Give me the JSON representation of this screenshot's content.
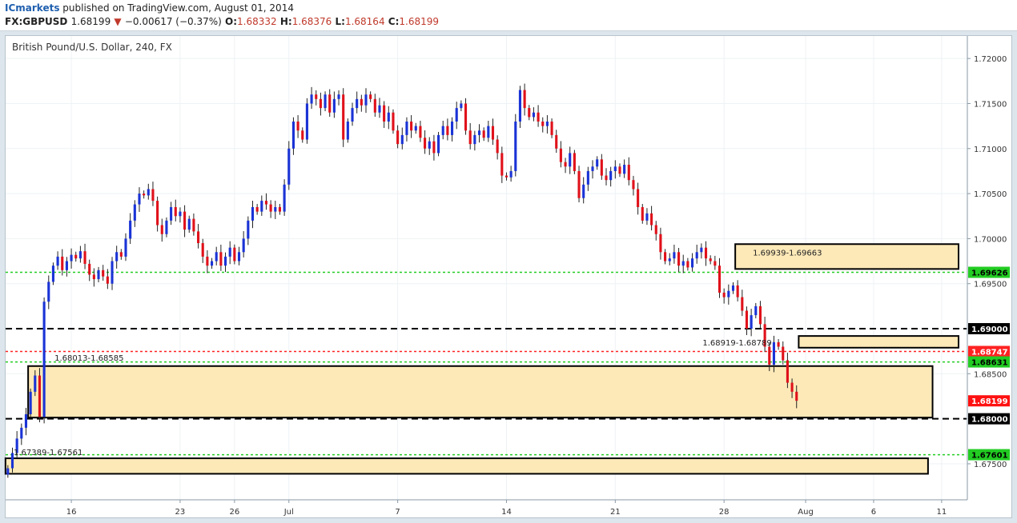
{
  "header": {
    "publisher": "ICmarkets",
    "published_text": "published on TradingView.com, August 01, 2014",
    "symbol": "FX:GBPUSD",
    "last": "1.68199",
    "change_arrow": "▼",
    "change": "−0.00617 (−0.37%)",
    "open_label": "O:",
    "open": "1.68332",
    "high_label": "H:",
    "high": "1.68376",
    "low_label": "L:",
    "low": "1.68164",
    "close_label": "C:",
    "close": "1.68199"
  },
  "chart_title": "British Pound/U.S. Dollar, 240, FX",
  "colors": {
    "up_candle": "#1a33d6",
    "down_candle": "#e0111a",
    "zone_fill": "#fde9b8",
    "green_line": "#22cc22",
    "red_line": "#ff2222",
    "black_line": "#000000"
  },
  "chart_data": {
    "type": "candlestick",
    "x_ticks": [
      {
        "label": "16",
        "i": 14
      },
      {
        "label": "23",
        "i": 38
      },
      {
        "label": "26",
        "i": 50
      },
      {
        "label": "Jul",
        "i": 62
      },
      {
        "label": "7",
        "i": 86
      },
      {
        "label": "14",
        "i": 110
      },
      {
        "label": "21",
        "i": 134
      },
      {
        "label": "28",
        "i": 158
      },
      {
        "label": "Aug",
        "i": 176
      },
      {
        "label": "6",
        "i": 191
      },
      {
        "label": "11",
        "i": 206
      }
    ],
    "y_ticks": [
      "1.72000",
      "1.71500",
      "1.71000",
      "1.70500",
      "1.70000",
      "1.69500",
      "1.69000",
      "1.68500",
      "1.68000",
      "1.67500"
    ],
    "ylim": [
      1.671,
      1.7225
    ],
    "x_count": 212,
    "zones": [
      {
        "label": "1.69939-1.69663",
        "top": 1.69939,
        "bottom": 1.69663,
        "i0": 161,
        "i1": 210
      },
      {
        "label": "1.68919-1.68789",
        "top": 1.68919,
        "bottom": 1.68789,
        "i0": 175,
        "i1": 210
      },
      {
        "label": "1.68013-1.68585",
        "top": 1.68585,
        "bottom": 1.68013,
        "i0": 5,
        "i1": 204
      },
      {
        "label": "1.67389-1.67561",
        "top": 1.67561,
        "bottom": 1.67389,
        "i0": 0,
        "i1": 203
      }
    ],
    "levels": [
      {
        "price": 1.69626,
        "label": "1.69626",
        "style": "green"
      },
      {
        "price": 1.69,
        "label": "1.69000",
        "style": "black"
      },
      {
        "price": 1.68747,
        "label": "1.68747",
        "style": "red"
      },
      {
        "price": 1.68631,
        "label": "1.68631",
        "style": "green"
      },
      {
        "price": 1.68199,
        "label": "1.68199",
        "style": "current"
      },
      {
        "price": 1.68,
        "label": "1.68000",
        "style": "black"
      },
      {
        "price": 1.67601,
        "label": "1.67601",
        "style": "green"
      }
    ],
    "closes": [
      1.6745,
      1.6762,
      1.6778,
      1.679,
      1.6805,
      1.683,
      1.6848,
      1.6802,
      1.693,
      1.6952,
      1.697,
      1.698,
      1.6965,
      1.6975,
      1.6982,
      1.6978,
      1.6986,
      1.6972,
      1.696,
      1.6955,
      1.6965,
      1.6958,
      1.695,
      1.6975,
      1.6985,
      1.698,
      1.7,
      1.702,
      1.7038,
      1.705,
      1.7048,
      1.7055,
      1.7042,
      1.7015,
      1.7005,
      1.702,
      1.7035,
      1.7025,
      1.703,
      1.701,
      1.7022,
      1.7008,
      1.6995,
      1.698,
      1.697,
      1.6975,
      1.6985,
      1.697,
      1.698,
      1.699,
      1.6975,
      1.6985,
      1.7,
      1.702,
      1.7035,
      1.703,
      1.7042,
      1.7038,
      1.703,
      1.7035,
      1.703,
      1.706,
      1.71,
      1.713,
      1.712,
      1.711,
      1.715,
      1.716,
      1.7155,
      1.7145,
      1.716,
      1.714,
      1.7155,
      1.716,
      1.711,
      1.713,
      1.7145,
      1.7155,
      1.7148,
      1.716,
      1.7155,
      1.714,
      1.7148,
      1.713,
      1.714,
      1.712,
      1.7105,
      1.7115,
      1.713,
      1.712,
      1.7125,
      1.7112,
      1.71,
      1.7108,
      1.7095,
      1.7115,
      1.7125,
      1.7115,
      1.713,
      1.7145,
      1.715,
      1.712,
      1.7105,
      1.7115,
      1.712,
      1.7112,
      1.7125,
      1.711,
      1.7095,
      1.707,
      1.7068,
      1.7075,
      1.713,
      1.7165,
      1.7145,
      1.7135,
      1.714,
      1.713,
      1.7125,
      1.713,
      1.7115,
      1.71,
      1.7085,
      1.708,
      1.7095,
      1.7075,
      1.7045,
      1.706,
      1.7075,
      1.708,
      1.7088,
      1.707,
      1.7065,
      1.7075,
      1.708,
      1.7072,
      1.7082,
      1.7065,
      1.7055,
      1.7035,
      1.702,
      1.7028,
      1.7015,
      1.7005,
      1.6985,
      1.6975,
      1.6978,
      1.6985,
      1.697,
      1.6975,
      1.6968,
      1.6978,
      1.6985,
      1.699,
      1.6978,
      1.6975,
      1.697,
      1.694,
      1.6935,
      1.6942,
      1.6948,
      1.6935,
      1.692,
      1.69,
      1.6915,
      1.6925,
      1.6905,
      1.688,
      1.686,
      1.6885,
      1.688,
      1.6865,
      1.684,
      1.683,
      1.682
    ]
  }
}
